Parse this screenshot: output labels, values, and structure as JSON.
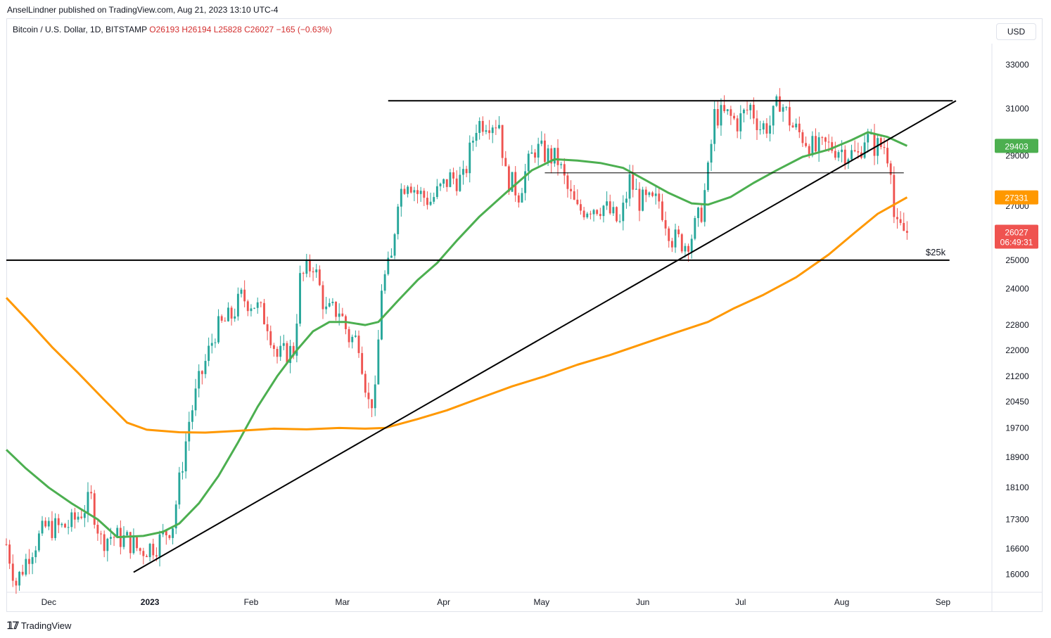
{
  "header": {
    "publish_line": "AnselLindner published on TradingView.com, Aug 21, 2023 13:10 UTC-4",
    "symbol": "Bitcoin / U.S. Dollar, 1D, BITSTAMP",
    "open": "O26193",
    "high": "H26194",
    "low": "L25828",
    "close": "C26027",
    "change": "−165 (−0.63%)",
    "currency": "USD"
  },
  "footer": {
    "brand": "TradingView",
    "logo_icon": "tradingview-logo-icon"
  },
  "colors": {
    "up": "#26a69a",
    "down": "#ef5350",
    "ma_short": "#4caf50",
    "ma_long": "#ff9800",
    "drawing": "#000000"
  },
  "chart_data": {
    "type": "candlestick",
    "y_scale": "log",
    "ylim": [
      15600,
      34000
    ],
    "x_range": [
      "2022-11-18",
      "2023-09-16"
    ],
    "ytick_labels": [
      "33000",
      "31000",
      "29000",
      "27000",
      "25000",
      "24000",
      "22800",
      "22000",
      "21200",
      "20450",
      "19700",
      "18900",
      "18100",
      "17300",
      "16600",
      "16000"
    ],
    "xtick_labels": [
      {
        "date": "2022-12-01",
        "label": "Dec"
      },
      {
        "date": "2023-01-01",
        "label": "2023"
      },
      {
        "date": "2023-02-01",
        "label": "Feb"
      },
      {
        "date": "2023-03-01",
        "label": "Mar"
      },
      {
        "date": "2023-04-01",
        "label": "Apr"
      },
      {
        "date": "2023-05-01",
        "label": "May"
      },
      {
        "date": "2023-06-01",
        "label": "Jun"
      },
      {
        "date": "2023-07-01",
        "label": "Jul"
      },
      {
        "date": "2023-08-01",
        "label": "Aug"
      },
      {
        "date": "2023-09-01",
        "label": "Sep"
      }
    ],
    "close_path": [
      [
        "2022-11-18",
        16700
      ],
      [
        "2022-11-21",
        15800
      ],
      [
        "2022-11-25",
        16500
      ],
      [
        "2022-11-30",
        17100
      ],
      [
        "2022-12-05",
        17100
      ],
      [
        "2022-12-08",
        17200
      ],
      [
        "2022-12-14",
        17800
      ],
      [
        "2022-12-17",
        16800
      ],
      [
        "2022-12-20",
        16900
      ],
      [
        "2022-12-25",
        16800
      ],
      [
        "2022-12-29",
        16550
      ],
      [
        "2023-01-03",
        16700
      ],
      [
        "2023-01-08",
        17200
      ],
      [
        "2023-01-13",
        19900
      ],
      [
        "2023-01-16",
        21000
      ],
      [
        "2023-01-21",
        22600
      ],
      [
        "2023-01-26",
        23100
      ],
      [
        "2023-01-29",
        23700
      ],
      [
        "2023-02-02",
        23500
      ],
      [
        "2023-02-06",
        22900
      ],
      [
        "2023-02-09",
        21800
      ],
      [
        "2023-02-14",
        22000
      ],
      [
        "2023-02-16",
        24300
      ],
      [
        "2023-02-20",
        24900
      ],
      [
        "2023-02-24",
        23200
      ],
      [
        "2023-02-28",
        23300
      ],
      [
        "2023-03-03",
        22400
      ],
      [
        "2023-03-06",
        22300
      ],
      [
        "2023-03-09",
        20400
      ],
      [
        "2023-03-11",
        20600
      ],
      [
        "2023-03-13",
        24100
      ],
      [
        "2023-03-16",
        25000
      ],
      [
        "2023-03-18",
        27400
      ],
      [
        "2023-03-21",
        28100
      ],
      [
        "2023-03-24",
        27500
      ],
      [
        "2023-03-28",
        27200
      ],
      [
        "2023-04-03",
        28100
      ],
      [
        "2023-04-07",
        28000
      ],
      [
        "2023-04-11",
        30300
      ],
      [
        "2023-04-14",
        30500
      ],
      [
        "2023-04-18",
        30400
      ],
      [
        "2023-04-20",
        28200
      ],
      [
        "2023-04-24",
        27500
      ],
      [
        "2023-04-26",
        28300
      ],
      [
        "2023-04-29",
        29300
      ],
      [
        "2023-05-03",
        29000
      ],
      [
        "2023-05-06",
        28800
      ],
      [
        "2023-05-09",
        27600
      ],
      [
        "2023-05-12",
        26800
      ],
      [
        "2023-05-16",
        27000
      ],
      [
        "2023-05-20",
        27000
      ],
      [
        "2023-05-25",
        26300
      ],
      [
        "2023-05-28",
        28000
      ],
      [
        "2023-05-31",
        27200
      ],
      [
        "2023-06-04",
        27100
      ],
      [
        "2023-06-06",
        27200
      ],
      [
        "2023-06-10",
        25800
      ],
      [
        "2023-06-14",
        25600
      ],
      [
        "2023-06-16",
        25900
      ],
      [
        "2023-06-19",
        26800
      ],
      [
        "2023-06-21",
        28300
      ],
      [
        "2023-06-23",
        30700
      ],
      [
        "2023-06-27",
        30700
      ],
      [
        "2023-06-30",
        30400
      ],
      [
        "2023-07-04",
        31100
      ],
      [
        "2023-07-07",
        30200
      ],
      [
        "2023-07-10",
        30300
      ],
      [
        "2023-07-13",
        31400
      ],
      [
        "2023-07-17",
        30200
      ],
      [
        "2023-07-20",
        29800
      ],
      [
        "2023-07-24",
        29200
      ],
      [
        "2023-07-27",
        29400
      ],
      [
        "2023-07-31",
        29300
      ],
      [
        "2023-08-03",
        29100
      ],
      [
        "2023-08-06",
        29000
      ],
      [
        "2023-08-08",
        29800
      ],
      [
        "2023-08-11",
        29400
      ],
      [
        "2023-08-14",
        29400
      ],
      [
        "2023-08-16",
        28700
      ],
      [
        "2023-08-17",
        26600
      ],
      [
        "2023-08-18",
        26100
      ],
      [
        "2023-08-21",
        26027
      ]
    ],
    "series": [
      {
        "indicator": "short moving average",
        "color": "#4caf50",
        "last_value": "29403",
        "points": [
          [
            "2022-11-18",
            19100
          ],
          [
            "2022-11-24",
            18600
          ],
          [
            "2022-12-01",
            18100
          ],
          [
            "2022-12-08",
            17700
          ],
          [
            "2022-12-16",
            17300
          ],
          [
            "2022-12-22",
            16870
          ],
          [
            "2022-12-30",
            16900
          ],
          [
            "2023-01-05",
            17000
          ],
          [
            "2023-01-10",
            17200
          ],
          [
            "2023-01-16",
            17700
          ],
          [
            "2023-01-22",
            18400
          ],
          [
            "2023-01-28",
            19300
          ],
          [
            "2023-02-03",
            20300
          ],
          [
            "2023-02-09",
            21200
          ],
          [
            "2023-02-15",
            22000
          ],
          [
            "2023-02-20",
            22600
          ],
          [
            "2023-02-25",
            22900
          ],
          [
            "2023-03-02",
            22900
          ],
          [
            "2023-03-08",
            22800
          ],
          [
            "2023-03-12",
            22900
          ],
          [
            "2023-03-18",
            23600
          ],
          [
            "2023-03-24",
            24300
          ],
          [
            "2023-03-30",
            24900
          ],
          [
            "2023-04-05",
            25700
          ],
          [
            "2023-04-12",
            26600
          ],
          [
            "2023-04-20",
            27500
          ],
          [
            "2023-04-28",
            28400
          ],
          [
            "2023-05-05",
            28850
          ],
          [
            "2023-05-12",
            28800
          ],
          [
            "2023-05-19",
            28700
          ],
          [
            "2023-05-26",
            28500
          ],
          [
            "2023-06-02",
            28000
          ],
          [
            "2023-06-09",
            27500
          ],
          [
            "2023-06-16",
            27100
          ],
          [
            "2023-06-21",
            27050
          ],
          [
            "2023-06-28",
            27350
          ],
          [
            "2023-07-05",
            27900
          ],
          [
            "2023-07-12",
            28400
          ],
          [
            "2023-07-20",
            28950
          ],
          [
            "2023-07-28",
            29250
          ],
          [
            "2023-08-04",
            29650
          ],
          [
            "2023-08-09",
            29980
          ],
          [
            "2023-08-15",
            29780
          ],
          [
            "2023-08-21",
            29403
          ]
        ]
      },
      {
        "indicator": "long moving average",
        "color": "#ff9800",
        "last_value": "27331",
        "points": [
          [
            "2022-11-18",
            23700
          ],
          [
            "2022-11-25",
            22900
          ],
          [
            "2022-12-02",
            22100
          ],
          [
            "2022-12-10",
            21300
          ],
          [
            "2022-12-18",
            20500
          ],
          [
            "2022-12-25",
            19850
          ],
          [
            "2022-12-31",
            19650
          ],
          [
            "2023-01-10",
            19580
          ],
          [
            "2023-01-18",
            19570
          ],
          [
            "2023-01-28",
            19620
          ],
          [
            "2023-02-08",
            19680
          ],
          [
            "2023-02-18",
            19660
          ],
          [
            "2023-02-28",
            19700
          ],
          [
            "2023-03-08",
            19680
          ],
          [
            "2023-03-14",
            19700
          ],
          [
            "2023-03-24",
            19950
          ],
          [
            "2023-04-02",
            20200
          ],
          [
            "2023-04-12",
            20550
          ],
          [
            "2023-04-22",
            20900
          ],
          [
            "2023-05-02",
            21200
          ],
          [
            "2023-05-12",
            21550
          ],
          [
            "2023-05-22",
            21850
          ],
          [
            "2023-06-01",
            22200
          ],
          [
            "2023-06-11",
            22550
          ],
          [
            "2023-06-21",
            22900
          ],
          [
            "2023-06-29",
            23350
          ],
          [
            "2023-07-08",
            23800
          ],
          [
            "2023-07-18",
            24400
          ],
          [
            "2023-07-28",
            25200
          ],
          [
            "2023-08-05",
            26000
          ],
          [
            "2023-08-12",
            26700
          ],
          [
            "2023-08-21",
            27331
          ]
        ]
      }
    ],
    "last_price": {
      "value": "26027",
      "countdown": "06:49:31"
    },
    "drawings": {
      "resistance": {
        "from": [
          "2023-03-15",
          31350
        ],
        "to": [
          "2023-09-04",
          31350
        ]
      },
      "support": {
        "from": [
          "2022-11-18",
          25000
        ],
        "to": [
          "2023-09-03",
          25000
        ],
        "label": "$25k"
      },
      "mid_level": {
        "from": [
          "2023-05-02",
          28300
        ],
        "to": [
          "2023-08-20",
          28300
        ]
      },
      "trendline": {
        "from": [
          "2022-12-27",
          16050
        ],
        "to": [
          "2023-09-05",
          31350
        ]
      }
    }
  }
}
